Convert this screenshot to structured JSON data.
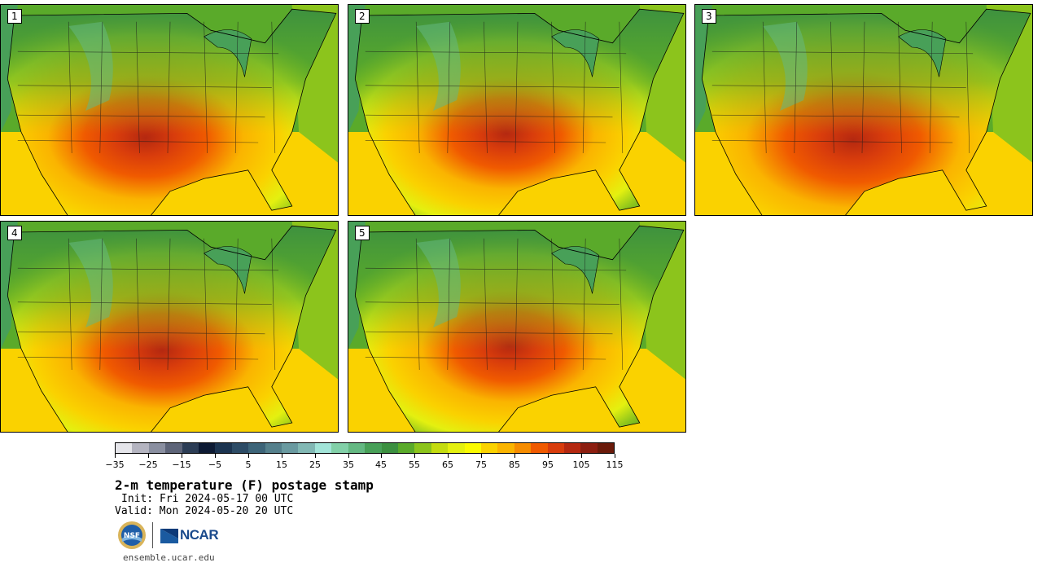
{
  "panels": [
    {
      "label": "1",
      "hot_x": 0.42,
      "hot_y": 0.62,
      "hot_scale": 1.0
    },
    {
      "label": "2",
      "hot_x": 0.46,
      "hot_y": 0.6,
      "hot_scale": 0.9
    },
    {
      "label": "3",
      "hot_x": 0.46,
      "hot_y": 0.63,
      "hot_scale": 1.1
    },
    {
      "label": "4",
      "hot_x": 0.47,
      "hot_y": 0.6,
      "hot_scale": 0.95
    },
    {
      "label": "5",
      "hot_x": 0.47,
      "hot_y": 0.58,
      "hot_scale": 0.9
    }
  ],
  "colorbar": {
    "colors": [
      "#e5e5ea",
      "#b4b4c0",
      "#8a8fa0",
      "#5d6478",
      "#2c3d55",
      "#0d1a33",
      "#1c3450",
      "#2d4c66",
      "#3d6478",
      "#55808c",
      "#6a9aa0",
      "#82b8b4",
      "#a2e4d8",
      "#82d0a8",
      "#64b882",
      "#48a058",
      "#3c9040",
      "#5aaa2a",
      "#8cc41c",
      "#c4dc10",
      "#e4f010",
      "#fafa00",
      "#fad200",
      "#fab400",
      "#f68c00",
      "#f05a00",
      "#d83c0c",
      "#b42810",
      "#8c1e10",
      "#6a1a0a"
    ],
    "ticks": [
      "−35",
      "−25",
      "−15",
      "−5",
      "5",
      "15",
      "25",
      "35",
      "45",
      "55",
      "65",
      "75",
      "85",
      "95",
      "105",
      "115"
    ]
  },
  "title": "2-m temperature (F) postage stamp",
  "init_text": "Init: Fri 2024-05-17 00 UTC",
  "valid_text": "Valid: Mon 2024-05-20 20 UTC",
  "logos": {
    "nsf": "NSF",
    "ncar": "NCAR"
  },
  "url": "ensemble.ucar.edu"
}
